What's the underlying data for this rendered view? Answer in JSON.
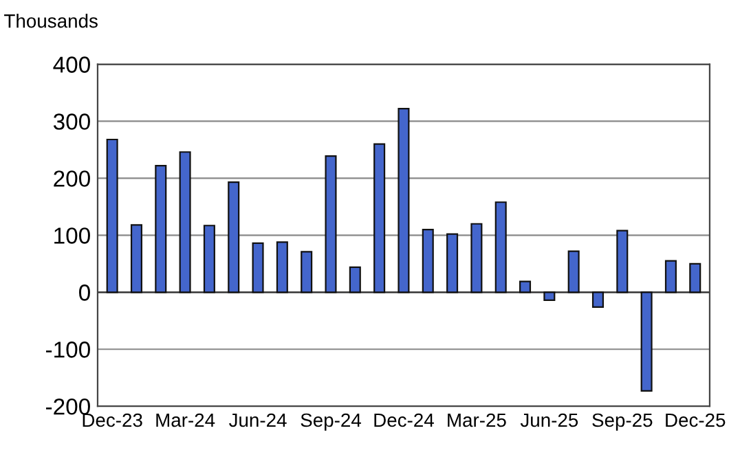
{
  "chart_data": {
    "type": "bar",
    "ylabel": "Thousands",
    "categories": [
      "Dec-23",
      null,
      null,
      "Mar-24",
      null,
      null,
      "Jun-24",
      null,
      null,
      "Sep-24",
      null,
      null,
      "Dec-24",
      null,
      null,
      "Mar-25",
      null,
      null,
      "Jun-25",
      null,
      null,
      "Sep-25",
      null,
      null,
      "Dec-25"
    ],
    "values": [
      268,
      118,
      222,
      246,
      117,
      193,
      86,
      88,
      71,
      239,
      44,
      260,
      322,
      110,
      102,
      120,
      158,
      19,
      -14,
      72,
      -26,
      108,
      -173,
      55,
      50
    ],
    "color": "#4466cc",
    "ylim": [
      -200,
      400
    ],
    "yticks": [
      -200,
      -100,
      0,
      100,
      200,
      300,
      400
    ],
    "grid": "y"
  }
}
